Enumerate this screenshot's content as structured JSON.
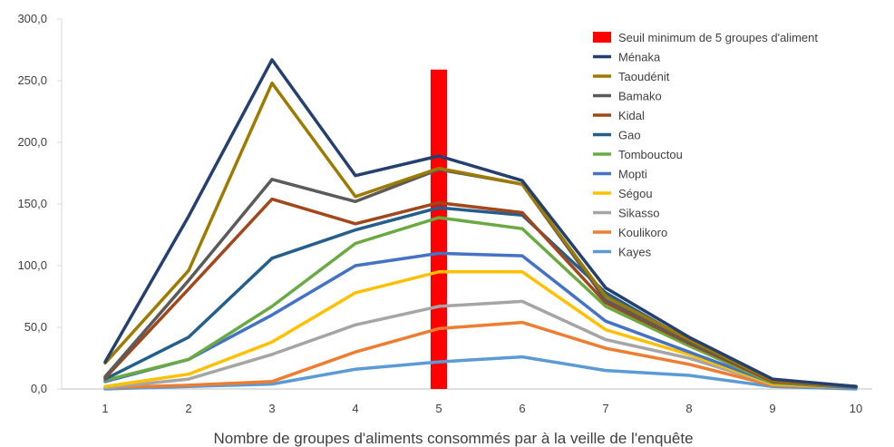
{
  "chart_data": {
    "type": "line",
    "title": "",
    "xlabel": "Nombre de groupes d'aliments consommés par à la veille de l'enquête",
    "ylabel": "",
    "x": [
      1,
      2,
      3,
      4,
      5,
      6,
      7,
      8,
      9,
      10
    ],
    "ylim": [
      0,
      300
    ],
    "yticks": [
      "0,0",
      "50,0",
      "100,0",
      "150,0",
      "200,0",
      "250,0",
      "300,0"
    ],
    "ytick_values": [
      0,
      50,
      100,
      150,
      200,
      250,
      300
    ],
    "grid": false,
    "legend_position": "top-right",
    "threshold": {
      "name": "Seuil minimum de 5 groupes d'aliment",
      "x": 5,
      "value": 259,
      "color": "#ff0000"
    },
    "series": [
      {
        "name": "Ménaka",
        "color": "#243f70",
        "values": [
          22,
          140,
          267,
          173,
          189,
          169,
          82,
          42,
          8,
          2
        ]
      },
      {
        "name": "Taoudénit",
        "color": "#9e7a00",
        "values": [
          21,
          96,
          248,
          156,
          179,
          166,
          75,
          40,
          7,
          2
        ]
      },
      {
        "name": "Bamako",
        "color": "#5b5b5b",
        "values": [
          10,
          88,
          170,
          152,
          178,
          166,
          72,
          38,
          7,
          2
        ]
      },
      {
        "name": "Kidal",
        "color": "#a2461b",
        "values": [
          9,
          81,
          154,
          134,
          151,
          143,
          70,
          37,
          6,
          2
        ]
      },
      {
        "name": "Gao",
        "color": "#245f8c",
        "values": [
          8,
          42,
          106,
          129,
          147,
          141,
          78,
          39,
          6,
          2
        ]
      },
      {
        "name": "Tombouctou",
        "color": "#6aaa42",
        "values": [
          7,
          24,
          67,
          118,
          139,
          130,
          67,
          35,
          5,
          2
        ]
      },
      {
        "name": "Mopti",
        "color": "#4472c4",
        "values": [
          6,
          24,
          60,
          100,
          110,
          108,
          55,
          30,
          5,
          1
        ]
      },
      {
        "name": "Ségou",
        "color": "#ffc000",
        "values": [
          2,
          12,
          38,
          78,
          95,
          95,
          48,
          28,
          4,
          1
        ]
      },
      {
        "name": "Sikasso",
        "color": "#a5a5a5",
        "values": [
          1,
          8,
          28,
          52,
          67,
          71,
          40,
          25,
          4,
          1
        ]
      },
      {
        "name": "Koulikoro",
        "color": "#ed7d31",
        "values": [
          1,
          3,
          6,
          30,
          49,
          54,
          33,
          20,
          3,
          1
        ]
      },
      {
        "name": "Kayes",
        "color": "#5b9bd5",
        "values": [
          0,
          2,
          4,
          16,
          22,
          26,
          15,
          11,
          2,
          0
        ]
      }
    ]
  }
}
